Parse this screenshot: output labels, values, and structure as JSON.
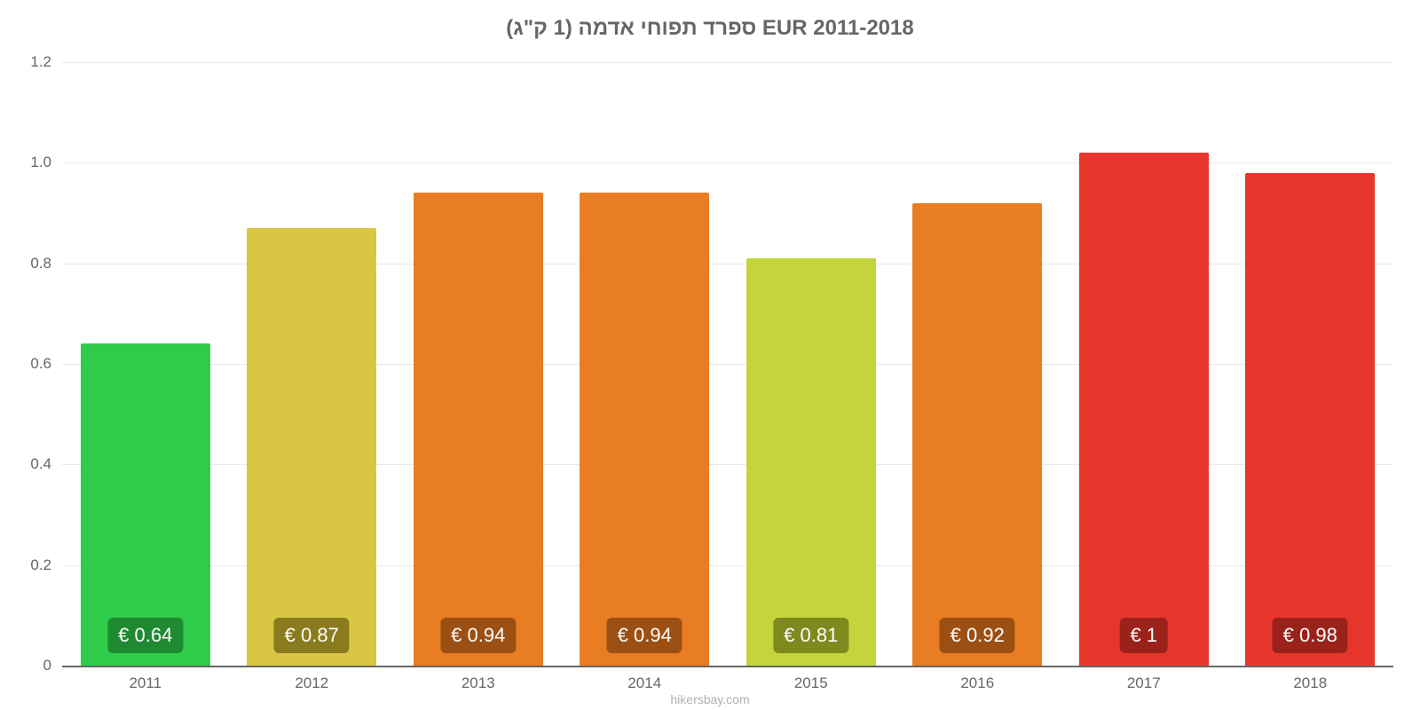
{
  "chart": {
    "type": "bar",
    "title": "ספרד תפוחי אדמה (1 ק\"ג) EUR 2011-2018",
    "title_fontsize": 24,
    "title_color": "#666666",
    "background_color": "#ffffff",
    "grid_color": "#e8e8e8",
    "axis_color": "#666666",
    "label_fontsize": 17,
    "label_color": "#666666",
    "bar_width": 0.78,
    "y": {
      "min": 0,
      "max": 1.2,
      "step": 0.2,
      "ticks": [
        "0",
        "0.2",
        "0.4",
        "0.6",
        "0.8",
        "1.0",
        "1.2"
      ]
    },
    "categories": [
      "2011",
      "2012",
      "2013",
      "2014",
      "2015",
      "2016",
      "2017",
      "2018"
    ],
    "values": [
      0.64,
      0.87,
      0.94,
      0.94,
      0.81,
      0.92,
      1.02,
      0.98
    ],
    "value_labels": [
      "€ 0.64",
      "€ 0.87",
      "€ 0.94",
      "€ 0.94",
      "€ 0.81",
      "€ 0.92",
      "€ 1",
      "€ 0.98"
    ],
    "bar_colors": [
      "#2ecc48",
      "#d9c642",
      "#e87d24",
      "#e87d24",
      "#c4d43a",
      "#e87d24",
      "#e6362c",
      "#e6362c"
    ],
    "label_bg_colors": [
      "#1f8a31",
      "#8a7c1e",
      "#9c4f12",
      "#9c4f12",
      "#7f8a1e",
      "#9c4f12",
      "#9b221b",
      "#9b221b"
    ],
    "value_label_fontsize": 22,
    "value_label_color": "#ffffff",
    "attribution": "hikersbay.com",
    "attribution_color": "#b0b0b0",
    "attribution_fontsize": 14
  }
}
